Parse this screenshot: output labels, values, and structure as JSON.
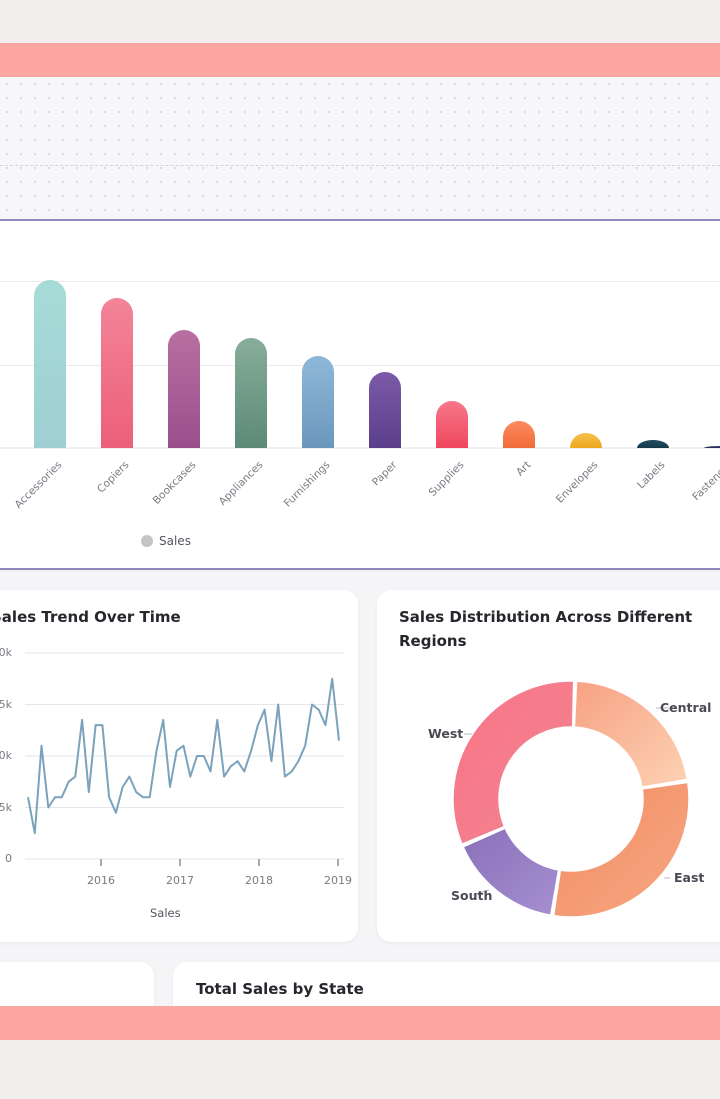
{
  "bar_chart": {
    "legend_label": "Sales",
    "legend_color": "#c4c4c4",
    "chart_data": {
      "type": "bar",
      "categories": [
        "Accessories",
        "Copiers",
        "Bookcases",
        "Appliances",
        "Furnishings",
        "Paper",
        "Supplies",
        "Art",
        "Envelopes",
        "Labels",
        "Fasteners"
      ],
      "values": [
        168,
        150,
        118,
        110,
        92,
        76,
        47,
        27,
        15,
        8,
        2
      ],
      "ylim": [
        0,
        200
      ],
      "series": [
        {
          "name": "Sales"
        }
      ],
      "colors": [
        [
          "#a6dcd8",
          "#9fcfd1"
        ],
        [
          "#f3849a",
          "#ec5f78"
        ],
        [
          "#b96fa1",
          "#9a4f8c"
        ],
        [
          "#87ae9a",
          "#5c8a77"
        ],
        [
          "#8fb8d8",
          "#6b97bd"
        ],
        [
          "#7c5aa8",
          "#5b3f8c"
        ],
        [
          "#f6778a",
          "#f0475e"
        ],
        [
          "#fb8a5e",
          "#f26b3a"
        ],
        [
          "#f6c04c",
          "#eea81d"
        ],
        [
          "#1f4e63",
          "#15394a"
        ],
        [
          "#3a3f6b",
          "#2b2f55"
        ]
      ]
    }
  },
  "trend_chart": {
    "title": "Sales Trend Over Time",
    "xlabel": "Sales",
    "y_ticks": [
      "0k",
      "5k",
      "0k",
      "5k",
      "0"
    ],
    "x_ticks": [
      "2016",
      "2017",
      "2018",
      "2019"
    ],
    "color": "#7aa3bb",
    "chart_data": {
      "type": "line",
      "x_range": [
        "2015-01",
        "2019-12"
      ],
      "values": [
        6.0,
        2.5,
        11.0,
        5.0,
        6.0,
        6.0,
        7.5,
        8.0,
        13.5,
        6.5,
        13.0,
        13.0,
        6.0,
        4.5,
        7.0,
        8.0,
        6.5,
        6.0,
        6.0,
        10.5,
        13.5,
        7.0,
        10.5,
        11.0,
        8.0,
        10.0,
        10.0,
        8.5,
        13.5,
        8.0,
        9.0,
        9.5,
        8.5,
        10.5,
        13.0,
        14.5,
        9.5,
        15.0,
        8.0,
        8.5,
        9.5,
        11.0,
        15.0,
        14.5,
        13.0,
        17.5,
        11.5
      ],
      "ylim": [
        0,
        20
      ]
    }
  },
  "donut_chart": {
    "title_line1": "Sales Distribution Across Different",
    "title_line2": "Regions",
    "chart_data": {
      "type": "pie",
      "slices": [
        {
          "label": "Central",
          "value": 22,
          "colors": [
            "#f7a183",
            "#fdd2b4"
          ]
        },
        {
          "label": "East",
          "value": 30,
          "colors": [
            "#f38c63",
            "#f6a883"
          ]
        },
        {
          "label": "South",
          "value": 16,
          "colors": [
            "#8a70b9",
            "#a68fd1"
          ]
        },
        {
          "label": "West",
          "value": 32,
          "colors": [
            "#f97488",
            "#f18590"
          ]
        }
      ]
    }
  },
  "bottom_cards": {
    "state_title": "Total Sales by State"
  }
}
